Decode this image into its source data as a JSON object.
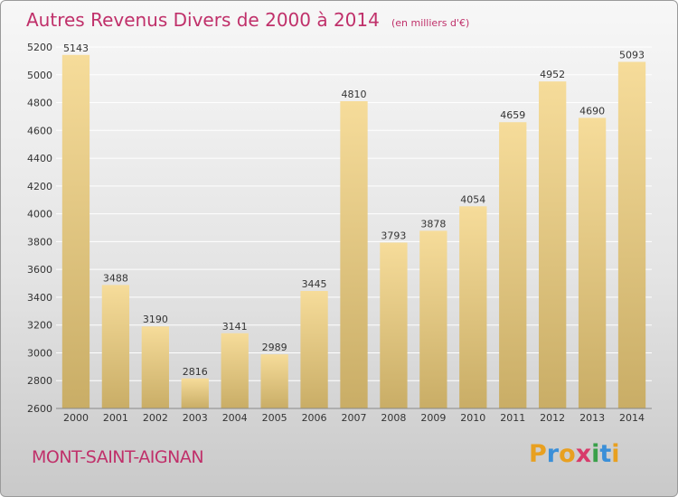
{
  "chart_data": {
    "type": "bar",
    "title": "Autres Revenus Divers de 2000 à 2014",
    "subtitle": "(en milliers d'€)",
    "categories": [
      "2000",
      "2001",
      "2002",
      "2003",
      "2004",
      "2005",
      "2006",
      "2007",
      "2008",
      "2009",
      "2010",
      "2011",
      "2012",
      "2013",
      "2014"
    ],
    "values": [
      5143,
      3488,
      3190,
      2816,
      3141,
      2989,
      3445,
      4810,
      3793,
      3878,
      4054,
      4659,
      4952,
      4690,
      5093
    ],
    "ylim": [
      2600,
      5200
    ],
    "yticks": [
      2600,
      2800,
      3000,
      3200,
      3400,
      3600,
      3800,
      4000,
      4200,
      4400,
      4600,
      4800,
      5000,
      5200
    ],
    "grid": true,
    "bar_color_top": "#f6dc9a",
    "bar_color_bottom": "#c9ad66"
  },
  "footer": {
    "commune": "MONT-SAINT-AIGNAN",
    "logo_letters": [
      "P",
      "r",
      "o",
      "x",
      "i",
      "t",
      "i"
    ],
    "logo_colors": [
      "#e8a020",
      "#3a8fd8",
      "#e8a020",
      "#d83a6a",
      "#3aa04a",
      "#3a8fd8",
      "#e8a020"
    ]
  }
}
